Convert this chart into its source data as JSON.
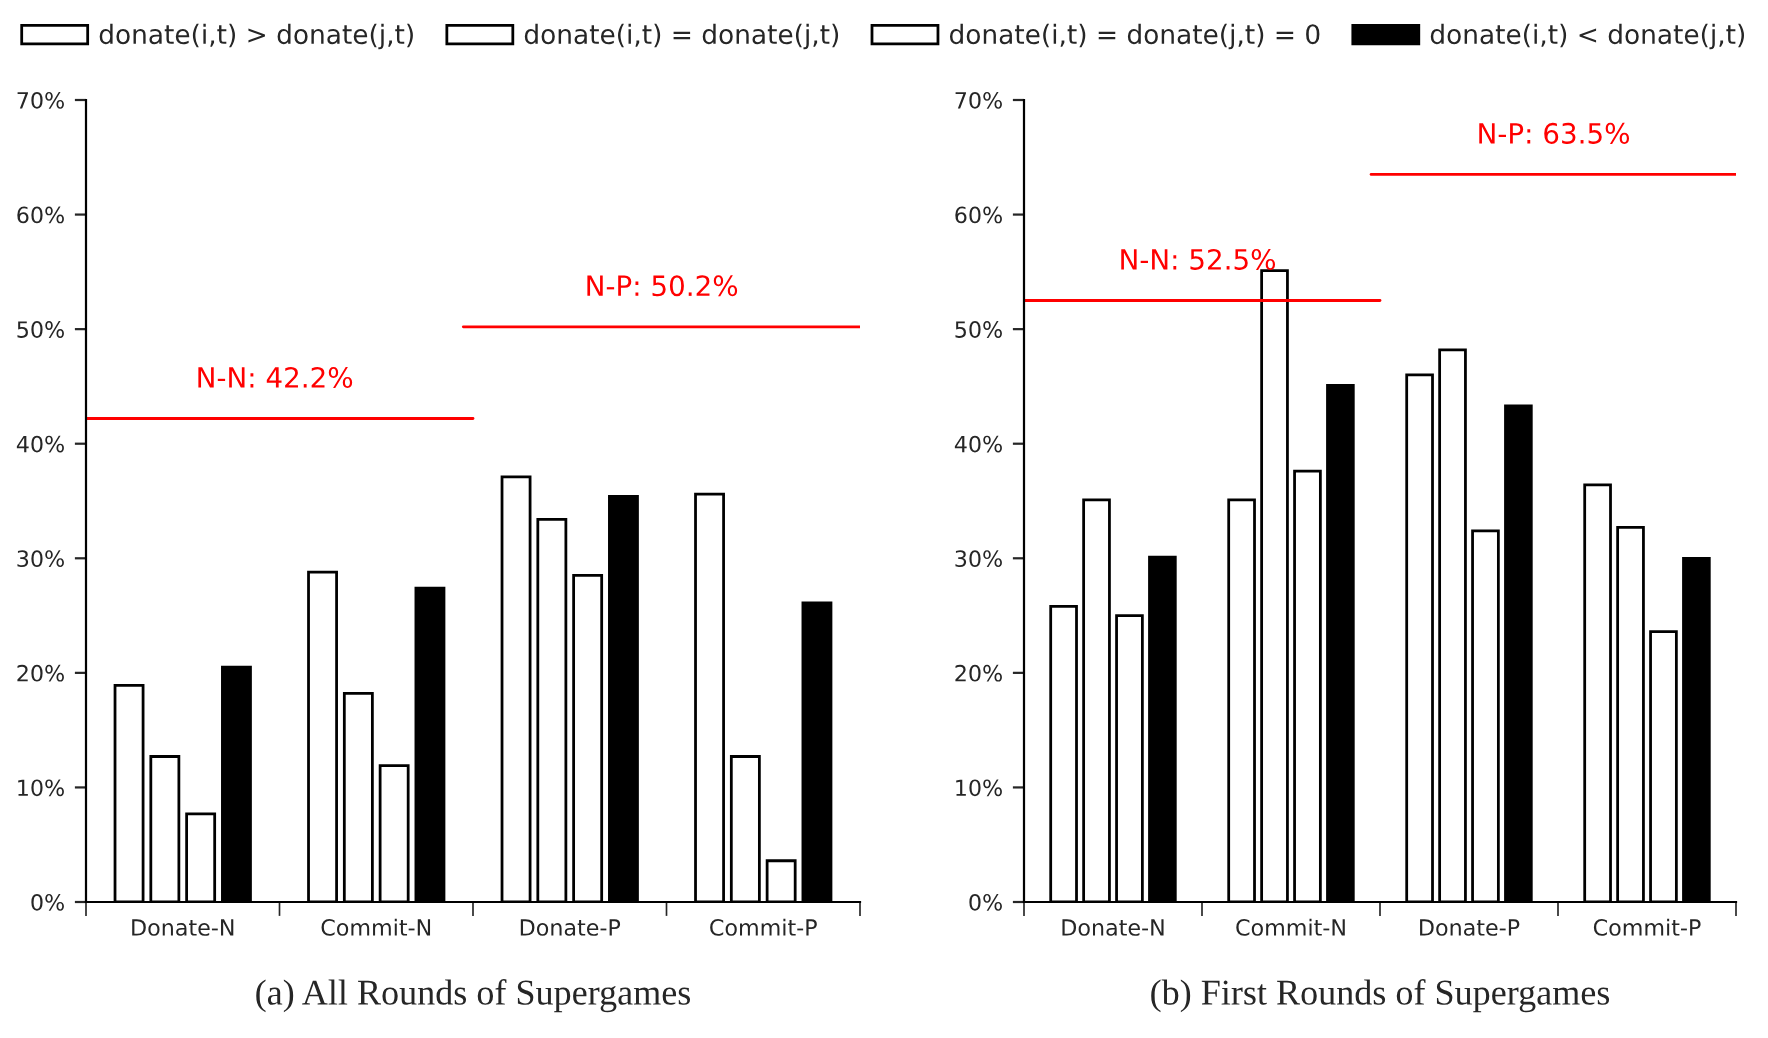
{
  "chart_data": [
    {
      "type": "bar",
      "xlabel": "(a) All Rounds of Supergames",
      "categories": [
        "Donate-N",
        "Commit-N",
        "Donate-P",
        "Commit-P"
      ],
      "series": [
        {
          "name": "donate(i,t) > donate(j,t)",
          "color": "#ffffff",
          "values": [
            18.9,
            28.8,
            37.1,
            35.6
          ]
        },
        {
          "name": "donate(i,t) = donate(j,t)",
          "color": "#ffffff",
          "values": [
            12.7,
            18.2,
            33.4,
            12.7
          ]
        },
        {
          "name": "donate(i,t) = donate(j,t) = 0",
          "color": "#ffffff",
          "values": [
            7.7,
            11.9,
            28.5,
            3.6
          ]
        },
        {
          "name": "donate(i,t) < donate(j,t)",
          "color": "#000000",
          "values": [
            20.5,
            27.4,
            35.4,
            26.1
          ]
        }
      ],
      "ylim": [
        0,
        70
      ],
      "yticks": [
        {
          "value": 0,
          "label": "0%"
        },
        {
          "value": 10,
          "label": "10%"
        },
        {
          "value": 20,
          "label": "20%"
        },
        {
          "value": 30,
          "label": "30%"
        },
        {
          "value": 40,
          "label": "40%"
        },
        {
          "value": 50,
          "label": "50%"
        },
        {
          "value": 60,
          "label": "60%"
        },
        {
          "value": 70,
          "label": "70%"
        }
      ],
      "ref_lines": [
        {
          "axis": "y",
          "value": 42.2,
          "label": "N-N: 42.2%",
          "color": "#ff0000"
        },
        {
          "axis": "y",
          "value": 50.2,
          "label": "N-P: 50.2%",
          "color": "#ff0000"
        }
      ],
      "grid": false,
      "legend": "top"
    },
    {
      "type": "bar",
      "xlabel": "(b) First Rounds of Supergames",
      "categories": [
        "Donate-N",
        "Commit-N",
        "Donate-P",
        "Commit-P"
      ],
      "series": [
        {
          "color": "#ffffff",
          "values": [
            25.8,
            35.1,
            46.0,
            36.4
          ]
        },
        {
          "color": "#ffffff",
          "values": [
            35.1,
            55.1,
            48.2,
            32.7
          ]
        },
        {
          "color": "#ffffff",
          "values": [
            25.0,
            37.6,
            32.4,
            23.6
          ]
        },
        {
          "color": "#000000",
          "values": [
            30.1,
            45.1,
            43.3,
            30.0
          ]
        }
      ],
      "ylim": [
        0,
        70
      ],
      "yticks": [
        {
          "value": 0,
          "label": "0%"
        },
        {
          "value": 10,
          "label": "10%"
        },
        {
          "value": 20,
          "label": "20%"
        },
        {
          "value": 30,
          "label": "30%"
        },
        {
          "value": 40,
          "label": "40%"
        },
        {
          "value": 50,
          "label": "50%"
        },
        {
          "value": 60,
          "label": "60%"
        },
        {
          "value": 70,
          "label": "70%"
        }
      ],
      "ref_lines": [
        {
          "axis": "y",
          "value": 52.5,
          "label": "N-N: 52.5%",
          "color": "#ff0000"
        },
        {
          "axis": "y",
          "value": 63.5,
          "label": "N-P: 63.5%",
          "color": "#ff0000"
        }
      ],
      "grid": false
    }
  ]
}
